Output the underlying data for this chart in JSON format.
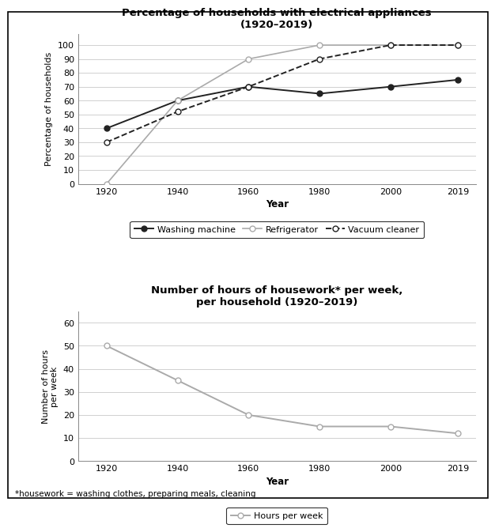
{
  "years": [
    1920,
    1940,
    1960,
    1980,
    2000,
    2019
  ],
  "washing_machine": [
    40,
    60,
    70,
    65,
    70,
    75
  ],
  "refrigerator": [
    0,
    60,
    90,
    100,
    100,
    100
  ],
  "vacuum_cleaner": [
    30,
    52,
    70,
    90,
    100,
    100
  ],
  "hours_per_week": [
    50,
    35,
    20,
    15,
    15,
    12
  ],
  "chart1_title": "Percentage of households with electrical appliances\n(1920–2019)",
  "chart1_ylabel": "Percentage of households",
  "chart1_xlabel": "Year",
  "chart1_ylim": [
    0,
    108
  ],
  "chart1_yticks": [
    0,
    10,
    20,
    30,
    40,
    50,
    60,
    70,
    80,
    90,
    100
  ],
  "chart2_title": "Number of hours of housework* per week,\nper household (1920–2019)",
  "chart2_ylabel": "Number of hours\nper week",
  "chart2_xlabel": "Year",
  "chart2_ylim": [
    0,
    65
  ],
  "chart2_yticks": [
    0,
    10,
    20,
    30,
    40,
    50,
    60
  ],
  "footnote": "*housework = washing clothes, preparing meals, cleaning",
  "color_washing": "#222222",
  "color_refrigerator": "#aaaaaa",
  "color_vacuum": "#222222",
  "color_hours": "#aaaaaa",
  "background_color": "#ffffff"
}
